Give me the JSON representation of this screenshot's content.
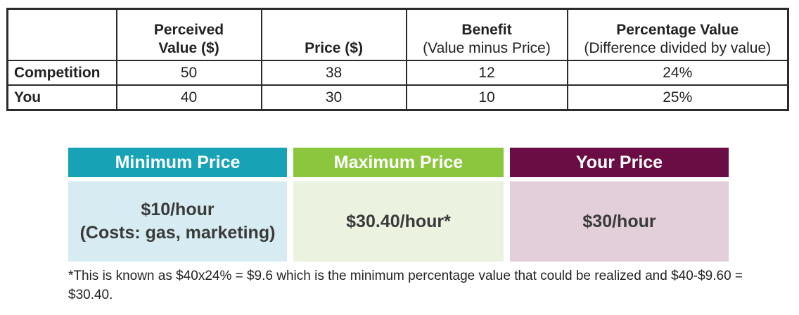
{
  "table": {
    "headers": [
      {
        "bold": "",
        "sub": ""
      },
      {
        "bold": "Perceived",
        "bold2": "Value ($)",
        "sub": ""
      },
      {
        "bold": "Price ($)",
        "sub": ""
      },
      {
        "bold": "Benefit",
        "sub": "(Value minus Price)"
      },
      {
        "bold": "Percentage Value",
        "sub": "(Difference divided by value)"
      }
    ],
    "rows": [
      {
        "label": "Competition",
        "value": "50",
        "price": "38",
        "benefit": "12",
        "percentage": "24%"
      },
      {
        "label": "You",
        "value": "40",
        "price": "30",
        "benefit": "10",
        "percentage": "25%"
      }
    ]
  },
  "cards": {
    "minimum": {
      "title": "Minimum Price",
      "line1": "$10/hour",
      "line2": "(Costs: gas, marketing)",
      "header_color": "#17a3b5",
      "body_color": "#d7ecf2"
    },
    "maximum": {
      "title": "Maximum Price",
      "line1": "$30.40/hour*",
      "header_color": "#8cc63f",
      "body_color": "#ebf3e0"
    },
    "yours": {
      "title": "Your Price",
      "line1": "$30/hour",
      "header_color": "#6b0d45",
      "body_color": "#e2cfd9"
    }
  },
  "footnote": "*This is known as $40x24% = $9.6 which is the minimum percentage value that could be realized and $40-$9.60 = $30.40."
}
